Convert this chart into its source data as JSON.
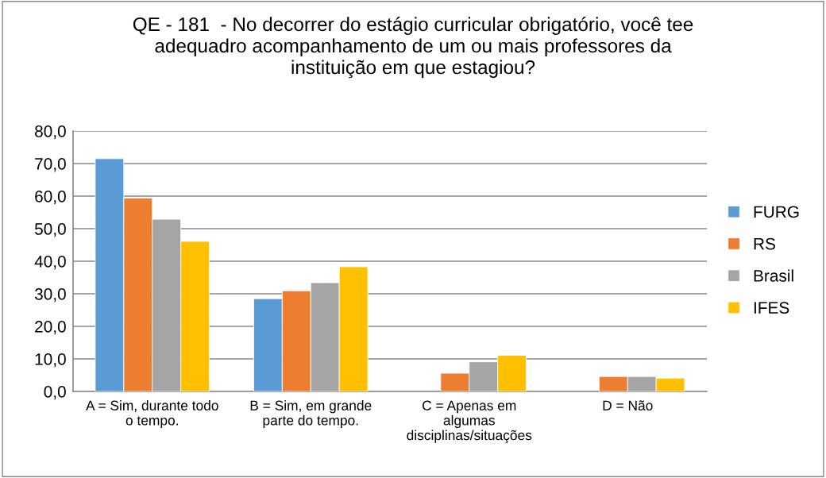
{
  "chart_data": {
    "type": "bar",
    "title": "QE - 181  - No decorrer do estágio curricular obrigatório, você tee\nadequadro acompanhamento de um ou mais professores da\ninstituição em que estagiou?",
    "categories": [
      "A = Sim, durante todo\no tempo.",
      "B = Sim, em grande\nparte do tempo.",
      "C = Apenas em\nalgumas\ndisciplinas/situações",
      "D = Não"
    ],
    "series": [
      {
        "name": "FURG",
        "color": "#5b9bd5",
        "values": [
          71.5,
          28.5,
          null,
          null
        ]
      },
      {
        "name": "RS",
        "color": "#ed7d31",
        "values": [
          59.4,
          30.9,
          5.6,
          4.6
        ]
      },
      {
        "name": "Brasil",
        "color": "#a5a5a5",
        "values": [
          52.9,
          33.4,
          9.1,
          4.6
        ]
      },
      {
        "name": "IFES",
        "color": "#ffc000",
        "values": [
          46.1,
          38.3,
          11.1,
          4.1
        ]
      }
    ],
    "ylim": [
      0,
      80
    ],
    "yticks": [
      {
        "value": 0,
        "label": "0,0"
      },
      {
        "value": 10,
        "label": "10,0"
      },
      {
        "value": 20,
        "label": "20,0"
      },
      {
        "value": 30,
        "label": "30,0"
      },
      {
        "value": 40,
        "label": "40,0"
      },
      {
        "value": 50,
        "label": "50,0"
      },
      {
        "value": 60,
        "label": "60,0"
      },
      {
        "value": 70,
        "label": "70,0"
      },
      {
        "value": 80,
        "label": "80,0"
      }
    ],
    "grid": "y",
    "legend": "right"
  }
}
